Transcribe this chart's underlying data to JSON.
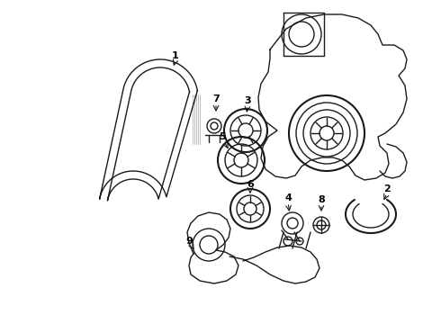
{
  "bg_color": "#ffffff",
  "line_color": "#1a1a1a",
  "lw": 1.0,
  "lw2": 1.5,
  "figw": 4.9,
  "figh": 3.6,
  "dpi": 100
}
